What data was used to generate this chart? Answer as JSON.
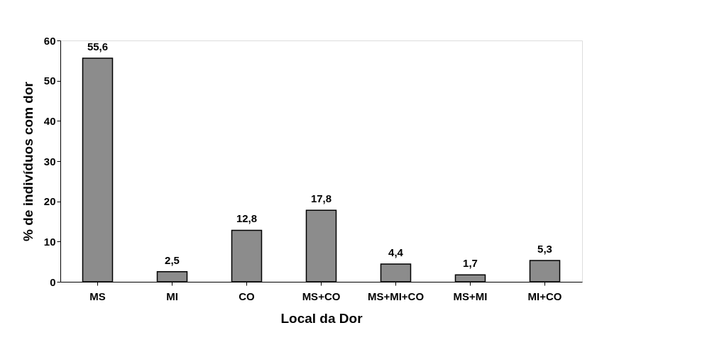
{
  "chart_data": {
    "type": "bar",
    "xlabel": "Local da Dor",
    "ylabel": "% de indivíduos com dor",
    "categories": [
      "MS",
      "MI",
      "CO",
      "MS+CO",
      "MS+MI+CO",
      "MS+MI",
      "MI+CO"
    ],
    "values": [
      55.6,
      2.5,
      12.8,
      17.8,
      4.4,
      1.7,
      5.3
    ],
    "value_labels": [
      "55,6",
      "2,5",
      "12,8",
      "17,8",
      "4,4",
      "1,7",
      "5,3"
    ],
    "color": "#8c8c8c",
    "ylim": [
      0,
      60
    ],
    "yticks": [
      0,
      10,
      20,
      30,
      40,
      50,
      60
    ],
    "grid": false
  }
}
